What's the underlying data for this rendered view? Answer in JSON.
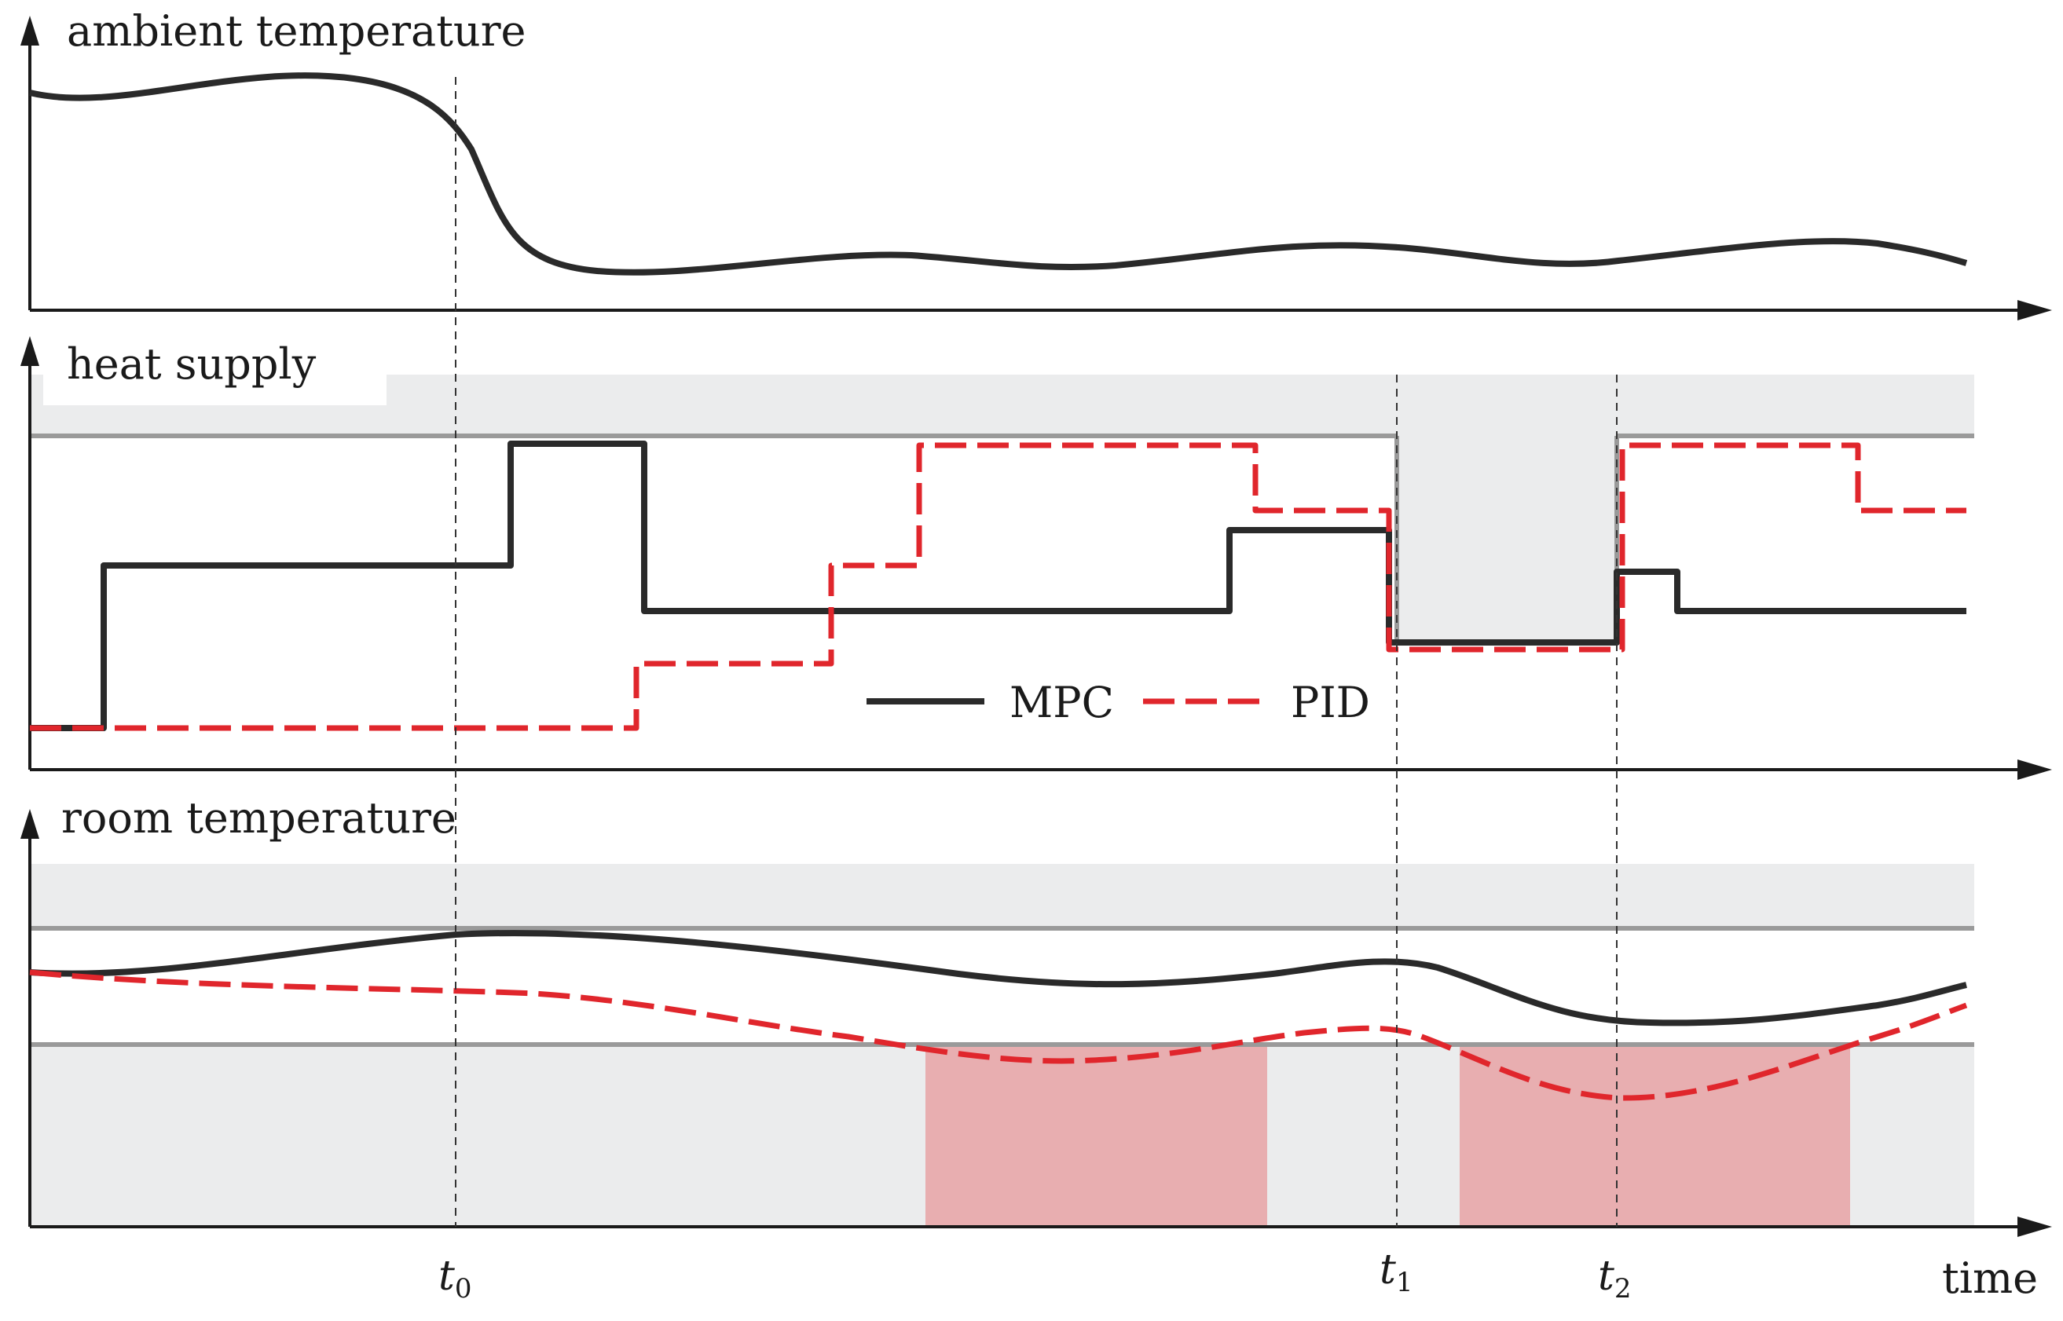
{
  "panels": {
    "ambient": {
      "title": "ambient temperature"
    },
    "heat": {
      "title": "heat supply"
    },
    "room": {
      "title": "room temperature"
    }
  },
  "legend": {
    "mpc": "MPC",
    "pid": "PID"
  },
  "xaxis": {
    "label": "time",
    "ticks": {
      "t0": "t",
      "t0_sub": "0",
      "t1": "t",
      "t1_sub": "1",
      "t2": "t",
      "t2_sub": "2"
    }
  },
  "colors": {
    "mpc": "#2a2a2a",
    "pid": "#e0262c",
    "bound": "#9a9a9a",
    "band": "#ebeced",
    "violation": "#e8aeb0"
  }
}
